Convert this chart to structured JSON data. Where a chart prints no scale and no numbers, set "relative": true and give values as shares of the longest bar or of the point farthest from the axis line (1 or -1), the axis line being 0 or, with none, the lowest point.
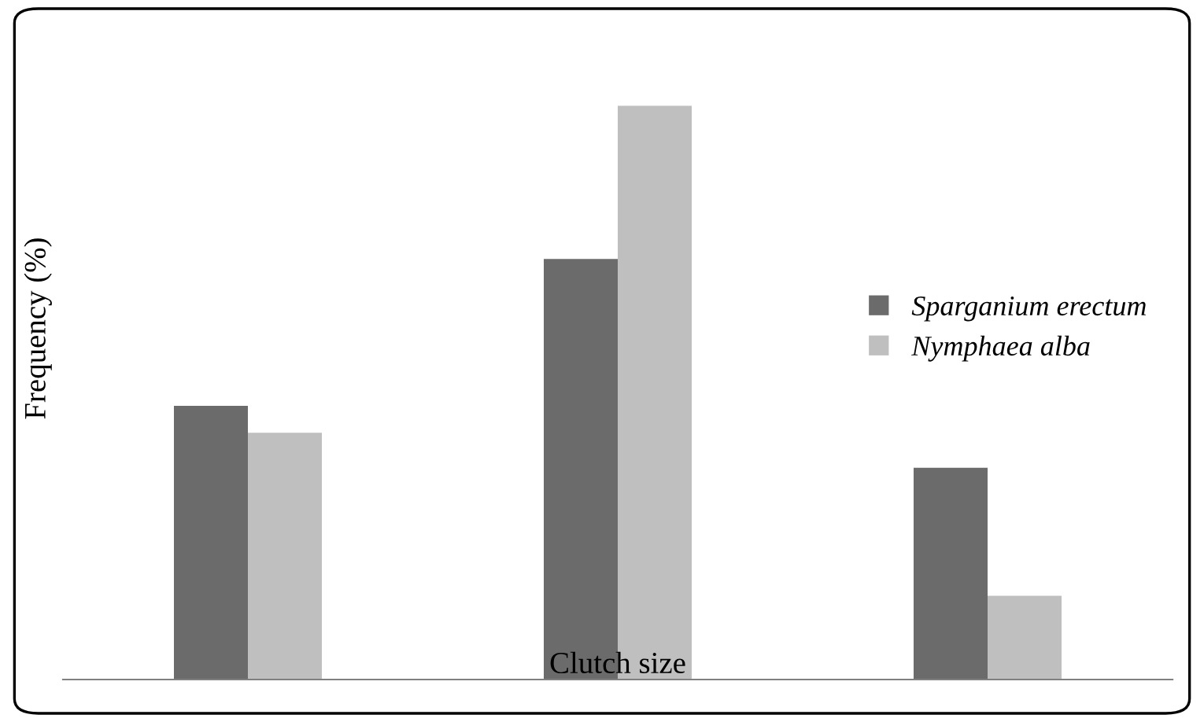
{
  "chart_data": {
    "type": "bar",
    "relative": true,
    "xlabel": "Clutch size",
    "ylabel": "Frequency (%)",
    "categories": [
      null,
      null,
      null
    ],
    "series": [
      {
        "name": "Sparganium erectum",
        "color": "#6b6b6b",
        "values": [
          0.477,
          0.733,
          0.369
        ]
      },
      {
        "name": "Nymphaea alba",
        "color": "#bfbfbf",
        "values": [
          0.43,
          1,
          0.146
        ]
      }
    ],
    "legend": "right",
    "grid": false
  }
}
